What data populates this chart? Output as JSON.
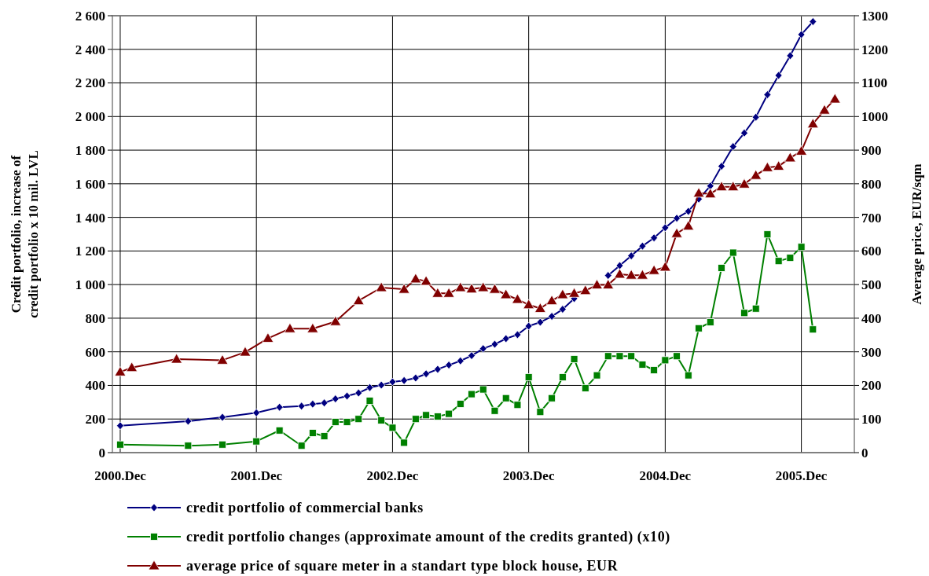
{
  "chart_data": {
    "type": "line",
    "ylabel": "Credit portfolio, increase of credit portfolio x 10 mil. LVL",
    "y2label": "Average price, EUR/sqm",
    "xlim": [
      "2000-11-10",
      "2006-04-22"
    ],
    "xticks": [
      {
        "value": "2000-12",
        "label": "2000.Dec"
      },
      {
        "value": "2001-12",
        "label": "2001.Dec"
      },
      {
        "value": "2002-12",
        "label": "2002.Dec"
      },
      {
        "value": "2003-12",
        "label": "2003.Dec"
      },
      {
        "value": "2004-12",
        "label": "2004.Dec"
      },
      {
        "value": "2005-12",
        "label": "2005.Dec"
      }
    ],
    "ylim": [
      0,
      2600
    ],
    "yticks": [
      0,
      200,
      400,
      600,
      800,
      {
        "value": 1000,
        "label": "1 000"
      },
      {
        "value": 1200,
        "label": "1 200"
      },
      {
        "value": 1400,
        "label": "1 400"
      },
      {
        "value": 1600,
        "label": "1 600"
      },
      {
        "value": 1800,
        "label": "1 800"
      },
      {
        "value": 2000,
        "label": "2 000"
      },
      {
        "value": 2200,
        "label": "2 200"
      },
      {
        "value": 2400,
        "label": "2 400"
      },
      {
        "value": 2600,
        "label": "2 600"
      }
    ],
    "y2lim": [
      0,
      1300
    ],
    "y2ticks": [
      0,
      100,
      200,
      300,
      400,
      500,
      600,
      700,
      800,
      900,
      1000,
      1100,
      1200,
      1300
    ],
    "grid": true,
    "legend": "bottom",
    "line_style": "solid",
    "series": [
      {
        "name": "credit portfolio of commercial banks",
        "color": "#000080",
        "marker": "diamond",
        "x": [
          "2000-12",
          "2001-06",
          "2001-09",
          "2001-12",
          "2002-02",
          "2002-04",
          "2002-05",
          "2002-06",
          "2002-07",
          "2002-08",
          "2002-09",
          "2002-10",
          "2002-11",
          "2002-12",
          "2003-01",
          "2003-02",
          "2003-03",
          "2003-04",
          "2003-05",
          "2003-06",
          "2003-07",
          "2003-08",
          "2003-09",
          "2003-10",
          "2003-11",
          "2003-12",
          "2004-01",
          "2004-02",
          "2004-03",
          "2004-04",
          "2004-05",
          "2004-06",
          "2004-07",
          "2004-08",
          "2004-09",
          "2004-10",
          "2004-11",
          "2004-12",
          "2005-01",
          "2005-02",
          "2005-03",
          "2005-04",
          "2005-05",
          "2005-06",
          "2005-07",
          "2005-08",
          "2005-09",
          "2005-10",
          "2005-11",
          "2005-12",
          "2006-01"
        ],
        "values": [
          160,
          187,
          210,
          237,
          270,
          277,
          289,
          296,
          320,
          337,
          355,
          387,
          402,
          421,
          429,
          444,
          469,
          496,
          521,
          546,
          577,
          619,
          645,
          678,
          702,
          753,
          776,
          811,
          853,
          917,
          null,
          null,
          1054,
          1113,
          1171,
          1229,
          1278,
          1338,
          1395,
          1436,
          1509,
          1587,
          1704,
          1821,
          1902,
          1996,
          2130,
          2245,
          2362,
          2488,
          2565
        ]
      },
      {
        "name": "credit portfolio changes (approximate amount of the credits granted) (x10)",
        "color": "#008000",
        "marker": "square",
        "x": [
          "2000-12",
          "2001-06",
          "2001-09",
          "2001-12",
          "2002-02",
          "2002-04",
          "2002-05",
          "2002-06",
          "2002-07",
          "2002-08",
          "2002-09",
          "2002-10",
          "2002-11",
          "2002-12",
          "2003-01",
          "2003-02",
          "2003-03",
          "2003-04",
          "2003-05",
          "2003-06",
          "2003-07",
          "2003-08",
          "2003-09",
          "2003-10",
          "2003-11",
          "2003-12",
          "2004-01",
          "2004-02",
          "2004-03",
          "2004-04",
          "2004-05",
          "2004-06",
          "2004-07",
          "2004-08",
          "2004-09",
          "2004-10",
          "2004-11",
          "2004-12",
          "2005-01",
          "2005-02",
          "2005-03",
          "2005-04",
          "2005-05",
          "2005-06",
          "2005-07",
          "2005-08",
          "2005-09",
          "2005-10",
          "2005-11",
          "2005-12",
          "2006-01"
        ],
        "values": [
          48,
          41,
          48,
          67,
          132,
          41,
          117,
          98,
          182,
          182,
          200,
          309,
          192,
          148,
          59,
          200,
          223,
          215,
          231,
          290,
          348,
          376,
          249,
          324,
          284,
          449,
          242,
          324,
          449,
          557,
          384,
          460,
          574,
          574,
          574,
          524,
          491,
          550,
          574,
          460,
          740,
          776,
          1099,
          1190,
          831,
          857,
          1299,
          1140,
          1159,
          1224,
          733
        ]
      },
      {
        "name": "average price of square meter in a standart type block house, EUR",
        "color": "#800000",
        "marker": "triangle",
        "axis": "y2",
        "x": [
          "2000-12",
          "2001-01",
          "2001-05",
          "2001-09",
          "2001-11",
          "2002-01",
          "2002-03",
          "2002-05",
          "2002-07",
          "2002-09",
          "2002-11",
          "2003-01",
          "2003-02",
          "2003-03",
          "2003-04",
          "2003-05",
          "2003-06",
          "2003-07",
          "2003-08",
          "2003-09",
          "2003-10",
          "2003-11",
          "2003-12",
          "2004-01",
          "2004-02",
          "2004-03",
          "2004-04",
          "2004-05",
          "2004-06",
          "2004-07",
          "2004-08",
          "2004-09",
          "2004-10",
          "2004-11",
          "2004-12",
          "2005-01",
          "2005-02",
          "2005-03",
          "2005-04",
          "2005-05",
          "2005-06",
          "2005-07",
          "2005-08",
          "2005-09",
          "2005-10",
          "2005-11",
          "2005-12",
          "2006-01",
          "2006-02",
          "2006-03"
        ],
        "values": [
          240,
          253,
          278,
          275,
          299,
          340,
          369,
          369,
          390,
          452,
          491,
          486,
          517,
          510,
          474,
          474,
          491,
          487,
          491,
          486,
          470,
          456,
          440,
          429,
          452,
          470,
          474,
          482,
          499,
          499,
          531,
          528,
          528,
          542,
          552,
          652,
          674,
          772,
          770,
          791,
          791,
          799,
          825,
          848,
          852,
          877,
          897,
          978,
          1019,
          1052
        ]
      }
    ]
  }
}
